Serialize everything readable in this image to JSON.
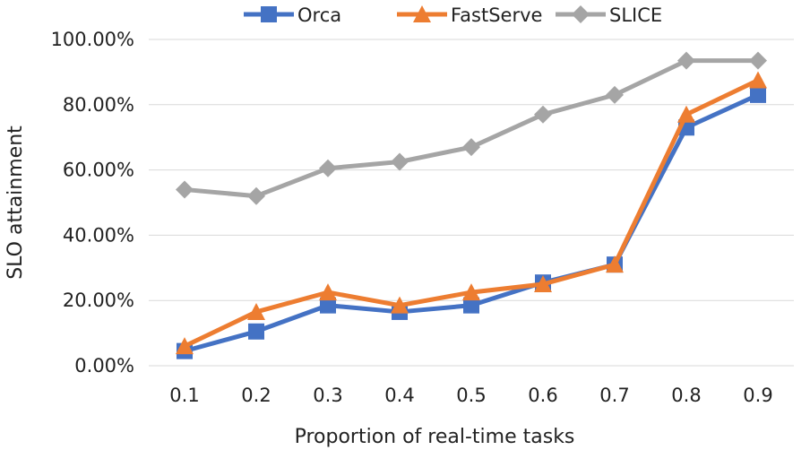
{
  "chart_data": {
    "type": "line",
    "title": "",
    "xlabel": "Proportion of real-time tasks",
    "ylabel": "SLO attainment",
    "categories": [
      "0.1",
      "0.2",
      "0.3",
      "0.4",
      "0.5",
      "0.6",
      "0.7",
      "0.8",
      "0.9"
    ],
    "ylim": [
      0,
      1
    ],
    "yticks": [
      0,
      0.2,
      0.4,
      0.6,
      0.8,
      1.0
    ],
    "ytick_labels": [
      "0.00%",
      "20.00%",
      "40.00%",
      "60.00%",
      "80.00%",
      "100.00%"
    ],
    "grid": "horizontal",
    "legend_position": "top",
    "series": [
      {
        "name": "Orca",
        "color": "#4472C4",
        "marker": "square",
        "values": [
          0.045,
          0.105,
          0.185,
          0.165,
          0.185,
          0.255,
          0.31,
          0.73,
          0.83
        ]
      },
      {
        "name": "FastServe",
        "color": "#ED7D31",
        "marker": "triangle",
        "values": [
          0.06,
          0.165,
          0.225,
          0.185,
          0.225,
          0.25,
          0.31,
          0.77,
          0.875
        ]
      },
      {
        "name": "SLICE",
        "color": "#A5A5A5",
        "marker": "diamond",
        "values": [
          0.54,
          0.52,
          0.605,
          0.625,
          0.67,
          0.77,
          0.83,
          0.935,
          0.935
        ]
      }
    ]
  }
}
